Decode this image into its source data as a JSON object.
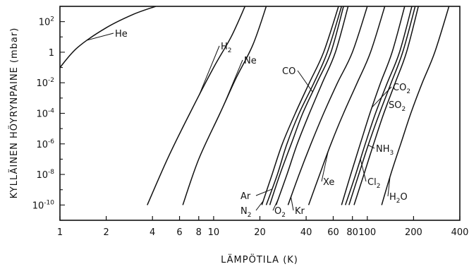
{
  "chart_data": {
    "type": "line",
    "xlabel": "LÄMPÖTILA (K)",
    "ylabel": "KYLLÄINEN HÖYRYNPAINE (mbar)",
    "x_scale": "log",
    "y_scale": "log",
    "xlim": [
      1,
      400
    ],
    "ylim": [
      1e-11,
      1000
    ],
    "x_ticks": [
      {
        "v": 1,
        "label": "1"
      },
      {
        "v": 2,
        "label": "2"
      },
      {
        "v": 4,
        "label": "4"
      },
      {
        "v": 6,
        "label": "6"
      },
      {
        "v": 8,
        "label": "8"
      },
      {
        "v": 10,
        "label": "10"
      },
      {
        "v": 20,
        "label": "20"
      },
      {
        "v": 40,
        "label": "40"
      },
      {
        "v": 60,
        "label": "60"
      },
      {
        "v": 80,
        "label": "80"
      },
      {
        "v": 100,
        "label": "100"
      },
      {
        "v": 200,
        "label": "200"
      },
      {
        "v": 400,
        "label": "400"
      }
    ],
    "y_ticks": [
      {
        "v": 100,
        "base": "10",
        "exp": "2"
      },
      {
        "v": 1,
        "base": "1",
        "exp": ""
      },
      {
        "v": 0.01,
        "base": "10",
        "exp": "-2"
      },
      {
        "v": 0.0001,
        "base": "10",
        "exp": "-4"
      },
      {
        "v": 1e-06,
        "base": "10",
        "exp": "-6"
      },
      {
        "v": 1e-08,
        "base": "10",
        "exp": "-8"
      },
      {
        "v": 1e-10,
        "base": "10",
        "exp": "-10"
      }
    ],
    "grid": false,
    "series": [
      {
        "name": "He",
        "label_main": "He",
        "label_sub": "",
        "x": [
          1.0,
          1.3,
          2.0,
          3.0,
          4.2
        ],
        "y": [
          0.1,
          2,
          40,
          300,
          1000
        ]
      },
      {
        "name": "H2",
        "label_main": "H",
        "label_sub": "2",
        "x": [
          3.7,
          5,
          7,
          10,
          13,
          16
        ],
        "y": [
          1e-10,
          1e-07,
          0.0001,
          0.1,
          10,
          1000
        ]
      },
      {
        "name": "Ne",
        "label_main": "Ne",
        "label_sub": "",
        "x": [
          6.3,
          8,
          11,
          14,
          18,
          22
        ],
        "y": [
          1e-10,
          1e-07,
          0.0001,
          0.02,
          3,
          1000
        ]
      },
      {
        "name": "N2",
        "label_main": "N",
        "label_sub": "2",
        "x": [
          20.6,
          24,
          28,
          34,
          42,
          52,
          65
        ],
        "y": [
          1e-10,
          1e-08,
          1e-06,
          0.0001,
          0.01,
          1,
          1000
        ]
      },
      {
        "name": "Ar",
        "label_main": "Ar",
        "label_sub": "",
        "x": [
          22,
          26,
          30,
          36,
          45,
          55,
          68
        ],
        "y": [
          1e-10,
          1e-08,
          1e-06,
          0.0001,
          0.01,
          1,
          1000
        ]
      },
      {
        "name": "CO",
        "label_main": "CO",
        "label_sub": "",
        "x": [
          23.2,
          27,
          32,
          38,
          47,
          58,
          70
        ],
        "y": [
          1e-10,
          1e-08,
          1e-06,
          0.0001,
          0.01,
          1,
          1000
        ]
      },
      {
        "name": "O2",
        "label_main": "O",
        "label_sub": "2",
        "x": [
          25.5,
          30,
          35,
          42,
          51,
          62,
          75
        ],
        "y": [
          1e-10,
          1e-08,
          1e-06,
          0.0001,
          0.01,
          1,
          1000
        ]
      },
      {
        "name": "Kr",
        "label_main": "Kr",
        "label_sub": "",
        "x": [
          30.5,
          36,
          43,
          52,
          64,
          80,
          100
        ],
        "y": [
          1e-10,
          1e-08,
          1e-06,
          0.0001,
          0.01,
          1,
          1000
        ]
      },
      {
        "name": "Xe",
        "label_main": "Xe",
        "label_sub": "",
        "x": [
          41.5,
          49,
          58,
          70,
          86,
          105,
          130
        ],
        "y": [
          1e-10,
          1e-08,
          1e-06,
          0.0001,
          0.01,
          1,
          1000
        ]
      },
      {
        "name": "CO2",
        "label_main": "CO",
        "label_sub": "2",
        "x": [
          68,
          78,
          90,
          104,
          122,
          145,
          175
        ],
        "y": [
          1e-10,
          1e-08,
          1e-06,
          0.0001,
          0.01,
          1,
          1000
        ]
      },
      {
        "name": "Cl2",
        "label_main": "Cl",
        "label_sub": "2",
        "x": [
          72,
          84,
          97,
          113,
          135,
          162,
          195
        ],
        "y": [
          1e-10,
          1e-08,
          1e-06,
          0.0001,
          0.01,
          1,
          1000
        ]
      },
      {
        "name": "NH3",
        "label_main": "NH",
        "label_sub": "3",
        "x": [
          76,
          88,
          102,
          120,
          143,
          170,
          205
        ],
        "y": [
          1e-10,
          1e-08,
          1e-06,
          0.0001,
          0.01,
          1,
          1000
        ]
      },
      {
        "name": "SO2",
        "label_main": "SO",
        "label_sub": "2",
        "x": [
          82,
          95,
          110,
          128,
          152,
          180,
          215
        ],
        "y": [
          1e-10,
          1e-08,
          1e-06,
          0.0001,
          0.01,
          1,
          1000
        ]
      },
      {
        "name": "H2O",
        "label_main": "H",
        "label_sub": "2",
        "label_tail": "O",
        "x": [
          124,
          142,
          165,
          192,
          228,
          275,
          340
        ],
        "y": [
          1e-10,
          1e-08,
          1e-06,
          0.0001,
          0.01,
          1,
          1000
        ]
      }
    ]
  }
}
